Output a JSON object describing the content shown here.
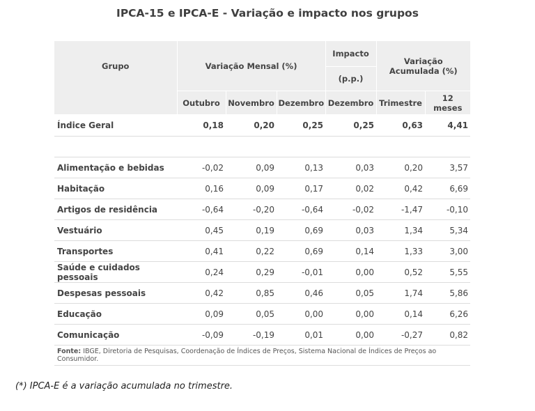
{
  "title": "IPCA-15 e IPCA-E - Variação e impacto nos grupos",
  "header": {
    "grupo": "Grupo",
    "variacao_mensal": "Variação Mensal (%)",
    "impacto": "Impacto",
    "impacto_unit": "(p.p.)",
    "variacao_acumulada_line1": "Variação",
    "variacao_acumulada_line2": "Acumulada (%)",
    "sub": [
      "Outubro",
      "Novembro",
      "Dezembro",
      "Dezembro",
      "Trimestre",
      "12 meses"
    ]
  },
  "total": {
    "label": "Índice Geral",
    "values": [
      "0,18",
      "0,20",
      "0,25",
      "0,25",
      "0,63",
      "4,41"
    ]
  },
  "rows": [
    {
      "label": "Alimentação e bebidas",
      "values": [
        "-0,02",
        "0,09",
        "0,13",
        "0,03",
        "0,20",
        "3,57"
      ]
    },
    {
      "label": "Habitação",
      "values": [
        "0,16",
        "0,09",
        "0,17",
        "0,02",
        "0,42",
        "6,69"
      ]
    },
    {
      "label": "Artigos de residência",
      "values": [
        "-0,64",
        "-0,20",
        "-0,64",
        "-0,02",
        "-1,47",
        "-0,10"
      ]
    },
    {
      "label": "Vestuário",
      "values": [
        "0,45",
        "0,19",
        "0,69",
        "0,03",
        "1,34",
        "5,34"
      ]
    },
    {
      "label": "Transportes",
      "values": [
        "0,41",
        "0,22",
        "0,69",
        "0,14",
        "1,33",
        "3,00"
      ]
    },
    {
      "label": "Saúde e cuidados pessoais",
      "values": [
        "0,24",
        "0,29",
        "-0,01",
        "0,00",
        "0,52",
        "5,55"
      ]
    },
    {
      "label": "Despesas pessoais",
      "values": [
        "0,42",
        "0,85",
        "0,46",
        "0,05",
        "1,74",
        "5,86"
      ]
    },
    {
      "label": "Educação",
      "values": [
        "0,09",
        "0,05",
        "0,00",
        "0,00",
        "0,14",
        "6,26"
      ]
    },
    {
      "label": "Comunicação",
      "values": [
        "-0,09",
        "-0,19",
        "0,01",
        "0,00",
        "-0,27",
        "0,82"
      ]
    }
  ],
  "source": {
    "label": "Fonte:",
    "text": " IBGE, Diretoria de Pesquisas, Coordenação de Índices de Preços, Sistema Nacional de Índices de Preços ao Consumidor."
  },
  "footnote": "(*) IPCA-E é a variação acumulada no trimestre."
}
